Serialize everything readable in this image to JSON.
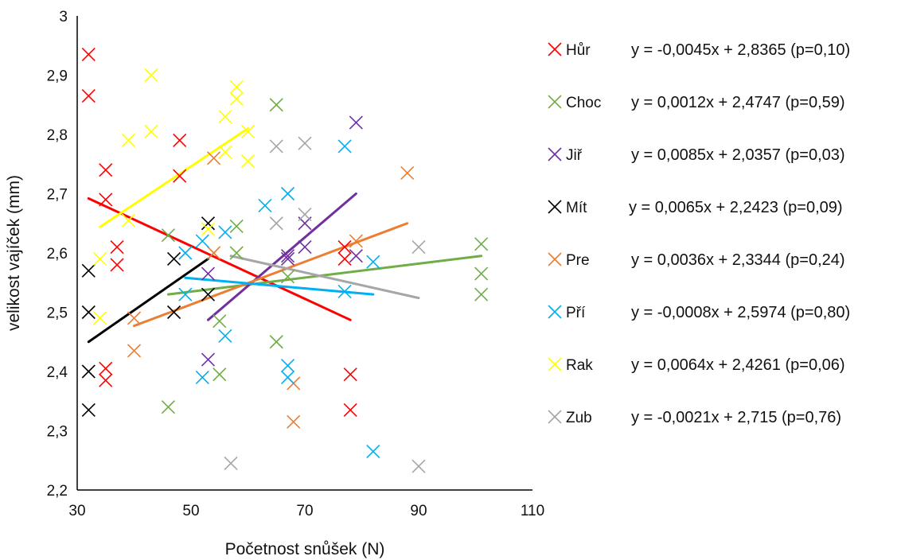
{
  "chart_data": {
    "type": "scatter",
    "xlabel": "Početnost snůšek (N)",
    "ylabel": "velikost vajíček (mm)",
    "xlim": [
      30,
      110
    ],
    "ylim": [
      2.2,
      3.0
    ],
    "xticks": [
      "30",
      "50",
      "70",
      "90",
      "110"
    ],
    "yticks": [
      "2,2",
      "2,3",
      "2,4",
      "2,5",
      "2,6",
      "2,7",
      "2,8",
      "2,9",
      "3"
    ],
    "grid": false,
    "legend_position": "right",
    "series": [
      {
        "name": "Hůr",
        "color": "#ff0000",
        "equation": "y = -0,0045x + 2,8365 (p=0,10)",
        "trend": {
          "x": [
            32,
            78
          ],
          "y": [
            2.692,
            2.487
          ]
        },
        "points": [
          [
            32,
            2.935
          ],
          [
            32,
            2.865
          ],
          [
            35,
            2.74
          ],
          [
            35,
            2.69
          ],
          [
            37,
            2.61
          ],
          [
            37,
            2.58
          ],
          [
            35,
            2.405
          ],
          [
            35,
            2.385
          ],
          [
            48,
            2.79
          ],
          [
            48,
            2.73
          ],
          [
            77,
            2.61
          ],
          [
            77,
            2.59
          ],
          [
            78,
            2.395
          ],
          [
            78,
            2.335
          ]
        ]
      },
      {
        "name": "Choc",
        "color": "#70ad47",
        "equation": "y = 0,0012x + 2,4747 (p=0,59)",
        "trend": {
          "x": [
            46,
            101
          ],
          "y": [
            2.53,
            2.595
          ]
        },
        "points": [
          [
            46,
            2.63
          ],
          [
            46,
            2.34
          ],
          [
            55,
            2.485
          ],
          [
            55,
            2.395
          ],
          [
            58,
            2.645
          ],
          [
            58,
            2.6
          ],
          [
            65,
            2.85
          ],
          [
            65,
            2.45
          ],
          [
            67,
            2.56
          ],
          [
            101,
            2.615
          ],
          [
            101,
            2.565
          ],
          [
            101,
            2.53
          ]
        ]
      },
      {
        "name": "Jiř",
        "color": "#7030a0",
        "equation": "y = 0,0085x + 2,0357 (p=0,03)",
        "trend": {
          "x": [
            53,
            79
          ],
          "y": [
            2.487,
            2.7
          ]
        },
        "points": [
          [
            53,
            2.565
          ],
          [
            53,
            2.42
          ],
          [
            67,
            2.595
          ],
          [
            67,
            2.59
          ],
          [
            70,
            2.65
          ],
          [
            70,
            2.61
          ],
          [
            79,
            2.82
          ],
          [
            79,
            2.595
          ]
        ]
      },
      {
        "name": "Mít",
        "color": "#000000",
        "equation": "y = 0,0065x + 2,2423 (p=0,09)",
        "trend": {
          "x": [
            32,
            53
          ],
          "y": [
            2.45,
            2.59
          ]
        },
        "points": [
          [
            32,
            2.57
          ],
          [
            32,
            2.5
          ],
          [
            32,
            2.4
          ],
          [
            32,
            2.335
          ],
          [
            47,
            2.59
          ],
          [
            47,
            2.5
          ],
          [
            53,
            2.65
          ],
          [
            53,
            2.53
          ]
        ]
      },
      {
        "name": "Pre",
        "color": "#ed7d31",
        "equation": "y = 0,0036x + 2,3344 (p=0,24)",
        "trend": {
          "x": [
            40,
            88
          ],
          "y": [
            2.477,
            2.65
          ]
        },
        "points": [
          [
            40,
            2.49
          ],
          [
            40,
            2.435
          ],
          [
            54,
            2.76
          ],
          [
            54,
            2.6
          ],
          [
            68,
            2.38
          ],
          [
            68,
            2.315
          ],
          [
            79,
            2.62
          ],
          [
            88,
            2.735
          ]
        ]
      },
      {
        "name": "Pří",
        "color": "#00b0f0",
        "equation": "y = -0,0008x + 2,5974 (p=0,80)",
        "trend": {
          "x": [
            49,
            82
          ],
          "y": [
            2.558,
            2.53
          ]
        },
        "points": [
          [
            49,
            2.6
          ],
          [
            49,
            2.53
          ],
          [
            52,
            2.39
          ],
          [
            52,
            2.62
          ],
          [
            56,
            2.635
          ],
          [
            56,
            2.46
          ],
          [
            63,
            2.68
          ],
          [
            67,
            2.7
          ],
          [
            67,
            2.41
          ],
          [
            67,
            2.39
          ],
          [
            77,
            2.78
          ],
          [
            77,
            2.535
          ],
          [
            82,
            2.585
          ],
          [
            82,
            2.265
          ]
        ]
      },
      {
        "name": "Rak",
        "color": "#ffff00",
        "equation": "y = 0,0064x + 2,4261 (p=0,06)",
        "trend": {
          "x": [
            34,
            60
          ],
          "y": [
            2.644,
            2.81
          ]
        },
        "points": [
          [
            34,
            2.59
          ],
          [
            34,
            2.49
          ],
          [
            39,
            2.79
          ],
          [
            39,
            2.655
          ],
          [
            43,
            2.9
          ],
          [
            43,
            2.805
          ],
          [
            53,
            2.64
          ],
          [
            56,
            2.83
          ],
          [
            56,
            2.77
          ],
          [
            58,
            2.88
          ],
          [
            58,
            2.86
          ],
          [
            60,
            2.805
          ],
          [
            60,
            2.755
          ]
        ]
      },
      {
        "name": "Zub",
        "color": "#a6a6a6",
        "equation": "y = -0,0021x + 2,715 (p=0,76)",
        "trend": {
          "x": [
            57,
            90
          ],
          "y": [
            2.595,
            2.524
          ]
        },
        "points": [
          [
            57,
            2.245
          ],
          [
            65,
            2.78
          ],
          [
            65,
            2.65
          ],
          [
            70,
            2.785
          ],
          [
            70,
            2.665
          ],
          [
            90,
            2.61
          ],
          [
            90,
            2.24
          ]
        ]
      }
    ]
  }
}
